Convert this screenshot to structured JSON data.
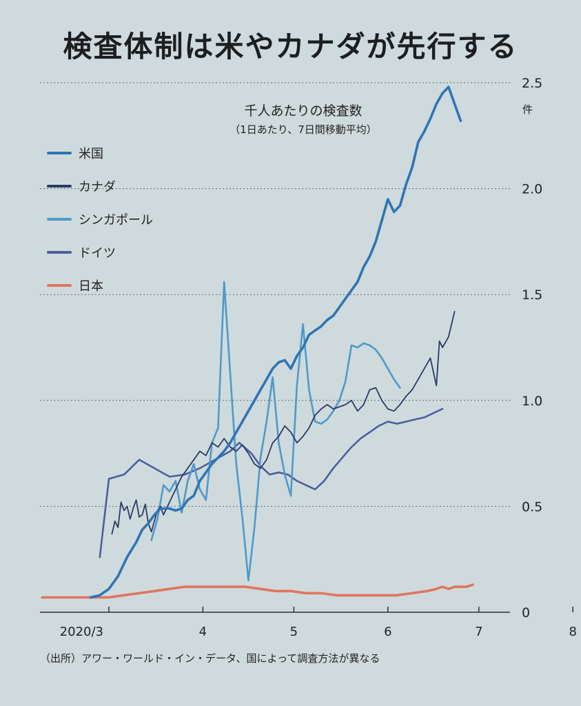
{
  "title": "検査体制は米やカナダが先行する",
  "subtitle": "千人あたりの検査数",
  "subtitle2": "（1日あたり、7日間移動平均）",
  "unit": "件",
  "source": "（出所）アワー・ワールド・イン・データ、国によって調査方法が異なる",
  "legend": [
    {
      "label": "米国",
      "color": "#2f74b5"
    },
    {
      "label": "カナダ",
      "color": "#2a3a68"
    },
    {
      "label": "シンガポール",
      "color": "#4f99c9"
    },
    {
      "label": "ドイツ",
      "color": "#4a5ea1"
    },
    {
      "label": "日本",
      "color": "#e0755c"
    }
  ],
  "chart_data": {
    "type": "line",
    "title": "千人あたりの検査数",
    "ylabel": "件",
    "ylim": [
      0,
      2.5
    ],
    "yticks": [
      0,
      0.5,
      1.0,
      1.5,
      2.0,
      2.5
    ],
    "ytick_labels": [
      "0",
      "0.5",
      "1.0",
      "1.5",
      "2.0",
      "2.5"
    ],
    "xticks": [
      {
        "label": "2020/3",
        "day": 0
      },
      {
        "label": "4",
        "day": 31
      },
      {
        "label": "5",
        "day": 61
      },
      {
        "label": "6",
        "day": 92
      },
      {
        "label": "7",
        "day": 122
      },
      {
        "label": "8",
        "day": 153
      }
    ],
    "series": [
      {
        "name": "米国",
        "color": "#2f74b5",
        "points": [
          [
            -6,
            0.07
          ],
          [
            -3,
            0.08
          ],
          [
            0,
            0.11
          ],
          [
            3,
            0.17
          ],
          [
            6,
            0.26
          ],
          [
            9,
            0.33
          ],
          [
            11,
            0.39
          ],
          [
            13,
            0.42
          ],
          [
            15,
            0.46
          ],
          [
            17,
            0.49
          ],
          [
            20,
            0.49
          ],
          [
            22,
            0.48
          ],
          [
            24,
            0.49
          ],
          [
            26,
            0.53
          ],
          [
            28,
            0.55
          ],
          [
            30,
            0.62
          ],
          [
            32,
            0.66
          ],
          [
            34,
            0.7
          ],
          [
            36,
            0.73
          ],
          [
            38,
            0.76
          ],
          [
            40,
            0.8
          ],
          [
            42,
            0.85
          ],
          [
            44,
            0.9
          ],
          [
            46,
            0.95
          ],
          [
            48,
            1.0
          ],
          [
            50,
            1.05
          ],
          [
            52,
            1.1
          ],
          [
            54,
            1.15
          ],
          [
            56,
            1.18
          ],
          [
            58,
            1.19
          ],
          [
            60,
            1.15
          ],
          [
            62,
            1.21
          ],
          [
            64,
            1.25
          ],
          [
            66,
            1.31
          ],
          [
            68,
            1.33
          ],
          [
            70,
            1.35
          ],
          [
            72,
            1.38
          ],
          [
            74,
            1.4
          ],
          [
            76,
            1.44
          ],
          [
            78,
            1.48
          ],
          [
            80,
            1.52
          ],
          [
            82,
            1.56
          ],
          [
            84,
            1.63
          ],
          [
            86,
            1.68
          ],
          [
            88,
            1.75
          ],
          [
            90,
            1.85
          ],
          [
            92,
            1.95
          ],
          [
            94,
            1.89
          ],
          [
            96,
            1.92
          ],
          [
            98,
            2.02
          ],
          [
            100,
            2.1
          ],
          [
            102,
            2.22
          ],
          [
            104,
            2.27
          ],
          [
            106,
            2.33
          ],
          [
            108,
            2.4
          ],
          [
            110,
            2.45
          ],
          [
            112,
            2.48
          ],
          [
            114,
            2.4
          ],
          [
            116,
            2.32
          ]
        ]
      },
      {
        "name": "カナダ",
        "color": "#2a3a68",
        "points": [
          [
            1,
            0.37
          ],
          [
            2,
            0.43
          ],
          [
            3,
            0.4
          ],
          [
            4,
            0.52
          ],
          [
            5,
            0.48
          ],
          [
            6,
            0.5
          ],
          [
            7,
            0.44
          ],
          [
            8,
            0.49
          ],
          [
            9,
            0.53
          ],
          [
            10,
            0.45
          ],
          [
            11,
            0.46
          ],
          [
            12,
            0.51
          ],
          [
            13,
            0.42
          ],
          [
            14,
            0.38
          ],
          [
            15,
            0.43
          ],
          [
            16,
            0.48
          ],
          [
            17,
            0.5
          ],
          [
            18,
            0.46
          ],
          [
            20,
            0.52
          ],
          [
            22,
            0.58
          ],
          [
            24,
            0.64
          ],
          [
            26,
            0.68
          ],
          [
            28,
            0.72
          ],
          [
            30,
            0.76
          ],
          [
            32,
            0.74
          ],
          [
            34,
            0.8
          ],
          [
            36,
            0.78
          ],
          [
            38,
            0.82
          ],
          [
            40,
            0.78
          ],
          [
            42,
            0.76
          ],
          [
            44,
            0.79
          ],
          [
            46,
            0.75
          ],
          [
            48,
            0.7
          ],
          [
            50,
            0.68
          ],
          [
            52,
            0.72
          ],
          [
            54,
            0.8
          ],
          [
            56,
            0.83
          ],
          [
            58,
            0.88
          ],
          [
            60,
            0.85
          ],
          [
            62,
            0.8
          ],
          [
            64,
            0.83
          ],
          [
            66,
            0.87
          ],
          [
            68,
            0.93
          ],
          [
            70,
            0.96
          ],
          [
            72,
            0.98
          ],
          [
            74,
            0.96
          ],
          [
            76,
            0.97
          ],
          [
            78,
            0.98
          ],
          [
            80,
            1.0
          ],
          [
            82,
            0.95
          ],
          [
            84,
            0.98
          ],
          [
            86,
            1.05
          ],
          [
            88,
            1.06
          ],
          [
            90,
            1.0
          ],
          [
            92,
            0.96
          ],
          [
            94,
            0.95
          ],
          [
            96,
            0.98
          ],
          [
            98,
            1.02
          ],
          [
            100,
            1.05
          ],
          [
            102,
            1.1
          ],
          [
            104,
            1.15
          ],
          [
            106,
            1.2
          ],
          [
            108,
            1.07
          ],
          [
            109,
            1.28
          ],
          [
            110,
            1.25
          ],
          [
            112,
            1.3
          ],
          [
            114,
            1.42
          ]
        ]
      },
      {
        "name": "シンガポール",
        "color": "#4f99c9",
        "points": [
          [
            14,
            0.34
          ],
          [
            16,
            0.44
          ],
          [
            18,
            0.6
          ],
          [
            20,
            0.57
          ],
          [
            22,
            0.62
          ],
          [
            24,
            0.47
          ],
          [
            26,
            0.62
          ],
          [
            28,
            0.7
          ],
          [
            30,
            0.58
          ],
          [
            32,
            0.53
          ],
          [
            34,
            0.8
          ],
          [
            36,
            0.87
          ],
          [
            38,
            1.56
          ],
          [
            40,
            1.13
          ],
          [
            42,
            0.7
          ],
          [
            44,
            0.45
          ],
          [
            46,
            0.15
          ],
          [
            48,
            0.4
          ],
          [
            50,
            0.73
          ],
          [
            52,
            0.9
          ],
          [
            54,
            1.11
          ],
          [
            56,
            0.8
          ],
          [
            58,
            0.65
          ],
          [
            60,
            0.55
          ],
          [
            62,
            1.07
          ],
          [
            64,
            1.36
          ],
          [
            66,
            1.05
          ],
          [
            68,
            0.9
          ],
          [
            70,
            0.89
          ],
          [
            72,
            0.91
          ],
          [
            74,
            0.95
          ],
          [
            76,
            1.0
          ],
          [
            78,
            1.09
          ],
          [
            80,
            1.26
          ],
          [
            82,
            1.25
          ],
          [
            84,
            1.27
          ],
          [
            86,
            1.26
          ],
          [
            88,
            1.24
          ],
          [
            90,
            1.2
          ],
          [
            92,
            1.15
          ],
          [
            94,
            1.1
          ],
          [
            96,
            1.06
          ]
        ]
      },
      {
        "name": "ドイツ",
        "color": "#4a5ea1",
        "points": [
          [
            -3,
            0.26
          ],
          [
            0,
            0.63
          ],
          [
            5,
            0.65
          ],
          [
            10,
            0.72
          ],
          [
            15,
            0.68
          ],
          [
            20,
            0.64
          ],
          [
            25,
            0.65
          ],
          [
            30,
            0.68
          ],
          [
            35,
            0.72
          ],
          [
            40,
            0.76
          ],
          [
            43,
            0.8
          ],
          [
            47,
            0.75
          ],
          [
            50,
            0.69
          ],
          [
            53,
            0.65
          ],
          [
            56,
            0.66
          ],
          [
            59,
            0.65
          ],
          [
            62,
            0.62
          ],
          [
            65,
            0.6
          ],
          [
            68,
            0.58
          ],
          [
            71,
            0.62
          ],
          [
            74,
            0.68
          ],
          [
            77,
            0.73
          ],
          [
            80,
            0.78
          ],
          [
            83,
            0.82
          ],
          [
            86,
            0.85
          ],
          [
            89,
            0.88
          ],
          [
            92,
            0.9
          ],
          [
            95,
            0.89
          ],
          [
            98,
            0.9
          ],
          [
            101,
            0.91
          ],
          [
            104,
            0.92
          ],
          [
            107,
            0.94
          ],
          [
            110,
            0.96
          ]
        ]
      },
      {
        "name": "日本",
        "color": "#e0755c",
        "points": [
          [
            -22,
            0.07
          ],
          [
            -15,
            0.07
          ],
          [
            -5,
            0.07
          ],
          [
            0,
            0.07
          ],
          [
            5,
            0.08
          ],
          [
            10,
            0.09
          ],
          [
            15,
            0.1
          ],
          [
            20,
            0.11
          ],
          [
            25,
            0.12
          ],
          [
            30,
            0.12
          ],
          [
            35,
            0.12
          ],
          [
            40,
            0.12
          ],
          [
            45,
            0.12
          ],
          [
            50,
            0.11
          ],
          [
            55,
            0.1
          ],
          [
            60,
            0.1
          ],
          [
            65,
            0.09
          ],
          [
            70,
            0.09
          ],
          [
            75,
            0.08
          ],
          [
            80,
            0.08
          ],
          [
            85,
            0.08
          ],
          [
            90,
            0.08
          ],
          [
            95,
            0.08
          ],
          [
            100,
            0.09
          ],
          [
            105,
            0.1
          ],
          [
            108,
            0.11
          ],
          [
            110,
            0.12
          ],
          [
            112,
            0.11
          ],
          [
            114,
            0.12
          ],
          [
            116,
            0.12
          ],
          [
            118,
            0.12
          ],
          [
            120,
            0.13
          ]
        ]
      }
    ]
  }
}
